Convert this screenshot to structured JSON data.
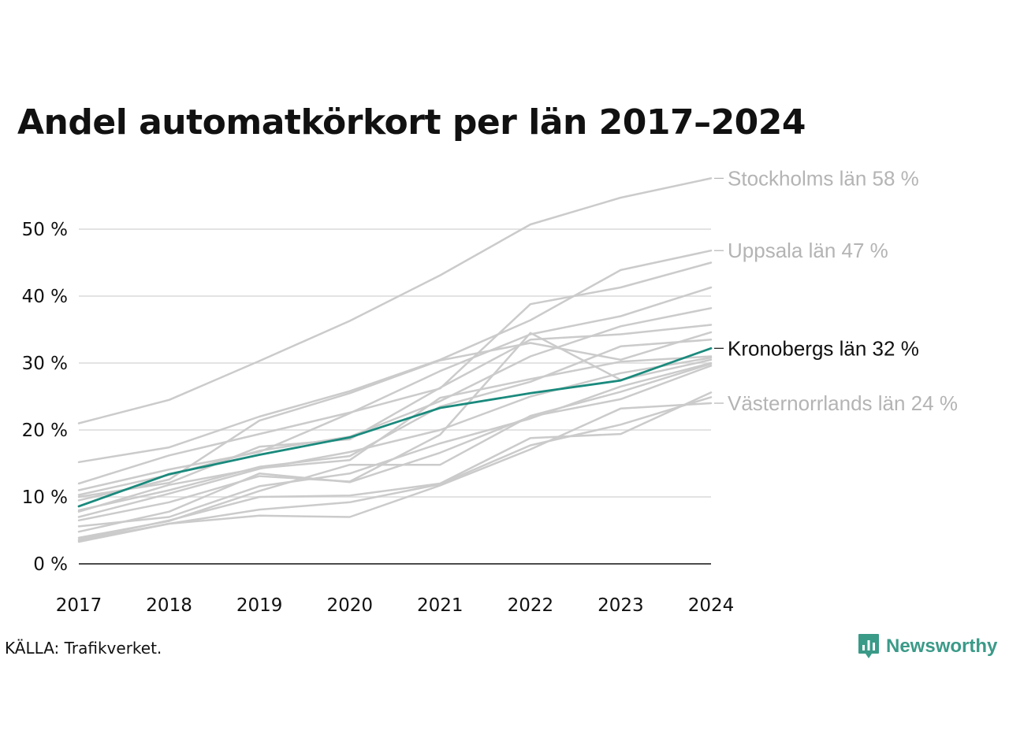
{
  "source": "KÄLLA: Trafikverket.",
  "brand": "Newsworthy",
  "colors": {
    "highlight": "#1a8a7d",
    "background_series": "#cbcbcb",
    "grid": "#e3e3e3",
    "axis": "#111111",
    "label_gray": "#b4b4b4",
    "brand": "#3a9a88"
  },
  "icons": {
    "brand_logo": "bar-chart-speech-bubble-icon"
  },
  "chart_data": {
    "type": "line",
    "title": "Andel automatkörkort per län 2017–2024",
    "xlabel": "",
    "ylabel": "",
    "x": [
      "2017",
      "2018",
      "2019",
      "2020",
      "2021",
      "2022",
      "2023",
      "2024"
    ],
    "ylim": [
      0,
      58
    ],
    "yticks": [
      0,
      10,
      20,
      30,
      40,
      50
    ],
    "ytick_labels": [
      "0 %",
      "10 %",
      "20 %",
      "30 %",
      "40 %",
      "50 %"
    ],
    "grid": true,
    "highlight": {
      "name": "Kronobergs län",
      "values": [
        8.6,
        13.4,
        16.3,
        18.9,
        23.3,
        25.5,
        27.4,
        32.2
      ]
    },
    "labels": [
      {
        "text": "Stockholms län 58 %",
        "value": 57.6,
        "highlighted": false
      },
      {
        "text": "Uppsala län 47 %",
        "value": 46.8,
        "highlighted": false
      },
      {
        "text": "Kronobergs län 32 %",
        "value": 32.2,
        "highlighted": true
      },
      {
        "text": "Västernorrlands län 24 %",
        "value": 24.0,
        "highlighted": false
      }
    ],
    "series": [
      {
        "values": [
          21.0,
          24.5,
          30.3,
          36.3,
          43.1,
          50.7,
          54.7,
          57.6
        ]
      },
      {
        "values": [
          15.2,
          17.4,
          22.0,
          25.8,
          30.5,
          36.4,
          43.9,
          46.8
        ]
      },
      {
        "values": [
          12.0,
          16.2,
          19.4,
          22.6,
          26.2,
          38.8,
          41.3,
          45.0
        ]
      },
      {
        "values": [
          11.0,
          14.1,
          16.7,
          22.5,
          28.8,
          34.3,
          37.0,
          41.3
        ]
      },
      {
        "values": [
          10.3,
          13.3,
          16.9,
          19.0,
          24.3,
          31.0,
          35.5,
          38.2
        ]
      },
      {
        "values": [
          10.0,
          12.1,
          17.5,
          18.6,
          26.3,
          33.5,
          34.3,
          35.7
        ]
      },
      {
        "values": [
          9.5,
          12.6,
          21.4,
          25.5,
          30.4,
          33.0,
          30.5,
          34.6
        ]
      },
      {
        "values": [
          8.0,
          11.0,
          14.5,
          16.1,
          23.5,
          27.2,
          32.5,
          33.5
        ]
      },
      {
        "values": [
          7.8,
          11.8,
          14.3,
          15.5,
          24.8,
          27.6,
          30.2,
          31.0
        ]
      },
      {
        "values": [
          7.0,
          10.5,
          14.2,
          16.7,
          20.0,
          25.0,
          28.5,
          30.8
        ]
      },
      {
        "values": [
          6.5,
          9.2,
          13.1,
          12.3,
          19.3,
          34.5,
          27.5,
          30.5
        ]
      },
      {
        "values": [
          5.6,
          7.0,
          11.6,
          13.5,
          18.0,
          21.7,
          26.5,
          30.0
        ]
      },
      {
        "values": [
          4.8,
          7.8,
          13.5,
          12.2,
          16.6,
          22.0,
          24.6,
          29.6
        ]
      },
      {
        "values": [
          3.9,
          6.4,
          10.9,
          14.8,
          14.8,
          22.1,
          25.7,
          29.9
        ]
      },
      {
        "values": [
          3.6,
          6.5,
          10.0,
          10.2,
          12.0,
          18.8,
          19.4,
          25.6
        ]
      },
      {
        "values": [
          3.5,
          6.0,
          8.1,
          9.2,
          11.9,
          17.7,
          20.8,
          24.9
        ]
      },
      {
        "values": [
          3.3,
          6.0,
          7.2,
          7.0,
          11.7,
          17.1,
          23.2,
          24.0
        ]
      }
    ]
  }
}
